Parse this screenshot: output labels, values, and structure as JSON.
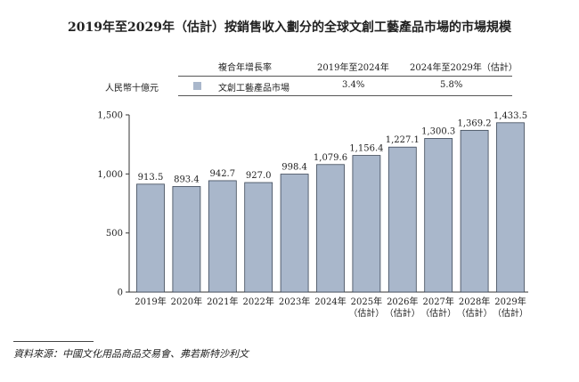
{
  "chart_data": {
    "type": "bar",
    "title": "2019年至2029年（估計）按銷售收入劃分的全球文創工藝產品市場的市場規模",
    "ylabel": "人民幣十億元",
    "categories": [
      "2019年",
      "2020年",
      "2021年",
      "2022年",
      "2023年",
      "2024年",
      "2025年",
      "2026年",
      "2027年",
      "2028年",
      "2029年"
    ],
    "category_sublabels": [
      "",
      "",
      "",
      "",
      "",
      "",
      "（估計）",
      "（估計）",
      "（估計）",
      "（估計）",
      "（估計）"
    ],
    "series": [
      {
        "name": "文創工藝產品市場",
        "values": [
          913.5,
          893.4,
          942.7,
          927.0,
          998.4,
          1079.6,
          1156.4,
          1227.1,
          1300.3,
          1369.2,
          1433.5
        ],
        "color": "#a9b7cb"
      }
    ],
    "data_labels": [
      "913.5",
      "893.4",
      "942.7",
      "927.0",
      "998.4",
      "1,079.6",
      "1,156.4",
      "1,227.1",
      "1,300.3",
      "1,369.2",
      "1,433.5"
    ],
    "yticks": [
      "0",
      "500",
      "1,000",
      "1,500"
    ],
    "ytick_values": [
      0,
      500,
      1000,
      1500
    ],
    "ylim": [
      0,
      1500
    ],
    "grid": false,
    "legend": {
      "position": "top",
      "cagr_header": "複合年增長率",
      "period1": "2019年至2024年",
      "period2": "2024年至2029年（估計）",
      "cagr1": "3.4%",
      "cagr2": "5.8%"
    }
  },
  "source": "資料來源：中國文化用品商品交易會、弗若斯特沙利文"
}
